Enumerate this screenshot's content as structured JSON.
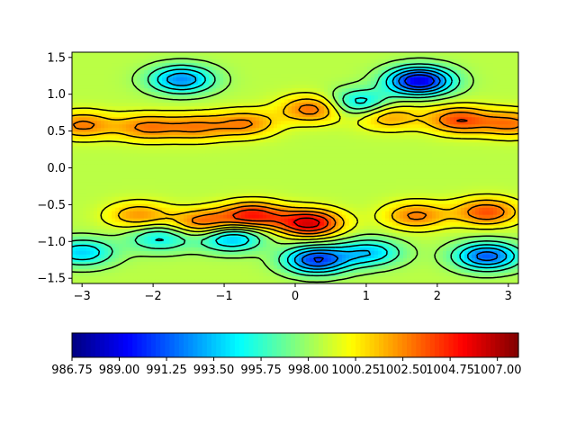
{
  "chart_data": {
    "type": "heatmap",
    "subtype": "filled-contour-with-contour-lines",
    "title": "",
    "xlabel": "",
    "ylabel": "",
    "xlim": [
      -3.14159,
      3.14159
    ],
    "ylim": [
      -1.5708,
      1.5708
    ],
    "x_ticks": [
      -3,
      -2,
      -1,
      0,
      1,
      2,
      3
    ],
    "x_tick_labels": [
      "−3",
      "−2",
      "−1",
      "0",
      "1",
      "2",
      "3"
    ],
    "y_ticks": [
      -1.5,
      -1.0,
      -0.5,
      0.0,
      0.5,
      1.0,
      1.5
    ],
    "y_tick_labels": [
      "−1.5",
      "−1.0",
      "−0.5",
      "0.0",
      "0.5",
      "1.0",
      "1.5"
    ],
    "colormap": "jet",
    "contour_line_color": "#000000",
    "value_range": [
      986.75,
      1008.0
    ],
    "field": {
      "background_value": 998.6,
      "features": [
        {
          "kind": "high",
          "x": -3.0,
          "y": 0.58,
          "value": 1002.8
        },
        {
          "kind": "high",
          "x": -2.1,
          "y": 0.55,
          "value": 1002.6
        },
        {
          "kind": "high",
          "x": -1.4,
          "y": 0.55,
          "value": 1002.3
        },
        {
          "kind": "high",
          "x": -0.7,
          "y": 0.6,
          "value": 1002.5
        },
        {
          "kind": "high",
          "x": 0.25,
          "y": 0.8,
          "value": 1003.4
        },
        {
          "kind": "high",
          "x": 1.3,
          "y": 0.7,
          "value": 1002.3
        },
        {
          "kind": "high",
          "x": 2.3,
          "y": 0.65,
          "value": 1003.8
        },
        {
          "kind": "high",
          "x": 3.05,
          "y": 0.6,
          "value": 1002.8
        },
        {
          "kind": "high",
          "x": -2.2,
          "y": -0.65,
          "value": 1002.3
        },
        {
          "kind": "high",
          "x": -1.3,
          "y": -0.75,
          "value": 1003.4
        },
        {
          "kind": "high",
          "x": -0.6,
          "y": -0.65,
          "value": 1004.9
        },
        {
          "kind": "high",
          "x": 0.2,
          "y": -0.75,
          "value": 1006.2
        },
        {
          "kind": "high",
          "x": 1.7,
          "y": -0.65,
          "value": 1002.8
        },
        {
          "kind": "high",
          "x": 2.7,
          "y": -0.6,
          "value": 1003.8
        },
        {
          "kind": "low",
          "x": -1.6,
          "y": 1.2,
          "value": 992.3
        },
        {
          "kind": "low",
          "x": 1.75,
          "y": 1.18,
          "value": 988.6
        },
        {
          "kind": "low",
          "x": 0.9,
          "y": 0.88,
          "value": 993.8
        },
        {
          "kind": "low",
          "x": -3.0,
          "y": -1.15,
          "value": 993.8
        },
        {
          "kind": "low",
          "x": -1.9,
          "y": -0.95,
          "value": 994.6
        },
        {
          "kind": "low",
          "x": -0.9,
          "y": -0.95,
          "value": 993.0
        },
        {
          "kind": "low",
          "x": 0.3,
          "y": -1.25,
          "value": 990.5
        },
        {
          "kind": "low",
          "x": 1.05,
          "y": -1.15,
          "value": 993.8
        },
        {
          "kind": "low",
          "x": 2.7,
          "y": -1.2,
          "value": 991.2
        }
      ]
    },
    "colorbar": {
      "orientation": "horizontal",
      "min": 986.75,
      "max": 1008.0,
      "ticks": [
        986.75,
        989.0,
        991.25,
        993.5,
        995.75,
        998.0,
        1000.25,
        1002.5,
        1004.75,
        1007.0
      ],
      "tick_labels": [
        "986.75",
        "989.00",
        "991.25",
        "993.50",
        "995.75",
        "998.00",
        "1000.25",
        "1002.50",
        "1004.75",
        "1007.00"
      ]
    },
    "grid": false,
    "legend": "none"
  }
}
